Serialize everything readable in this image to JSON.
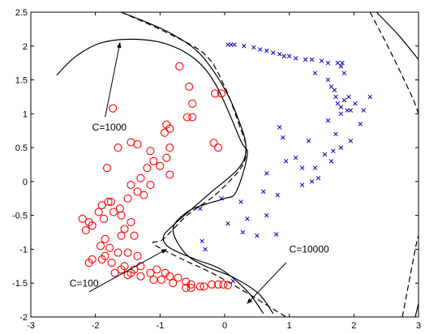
{
  "chart_data": {
    "type": "scatter",
    "title": "",
    "xlabel": "",
    "ylabel": "",
    "xlim": [
      -3,
      3
    ],
    "ylim": [
      -2,
      2.5
    ],
    "xticks": [
      "-3",
      "-2",
      "-1",
      "0",
      "1",
      "2",
      "3"
    ],
    "yticks": [
      "-2",
      "-1.5",
      "-1",
      "-0.5",
      "0",
      "0.5",
      "1",
      "1.5",
      "2",
      "2.5"
    ],
    "grid": false,
    "legend": "none",
    "colors": {
      "circles": "#ff0000",
      "crosses": "#0000cc",
      "boundary": "#000000"
    },
    "series": [
      {
        "marker": "circle",
        "color": "#ff0000",
        "points": [
          [
            -0.7,
            1.7
          ],
          [
            -0.55,
            1.4
          ],
          [
            -0.5,
            1.15
          ],
          [
            -1.73,
            1.08
          ],
          [
            -0.9,
            0.84
          ],
          [
            -0.85,
            0.78
          ],
          [
            -0.93,
            0.72
          ],
          [
            -0.58,
            0.95
          ],
          [
            -0.5,
            0.95
          ],
          [
            -0.15,
            1.3
          ],
          [
            -0.05,
            1.3
          ],
          [
            -1.45,
            0.58
          ],
          [
            -1.35,
            0.55
          ],
          [
            -1.65,
            0.5
          ],
          [
            -1.15,
            0.45
          ],
          [
            -0.85,
            0.5
          ],
          [
            -0.17,
            0.57
          ],
          [
            -0.1,
            0.5
          ],
          [
            -1.1,
            0.3
          ],
          [
            -1.2,
            0.2
          ],
          [
            -1.0,
            0.23
          ],
          [
            -0.9,
            0.35
          ],
          [
            -0.85,
            0.1
          ],
          [
            -1.82,
            0.2
          ],
          [
            -1.3,
            0.05
          ],
          [
            -1.15,
            -0.05
          ],
          [
            -1.45,
            -0.05
          ],
          [
            -1.35,
            -0.15
          ],
          [
            -1.25,
            -0.2
          ],
          [
            -1.5,
            -0.25
          ],
          [
            -1.8,
            -0.3
          ],
          [
            -1.62,
            -0.4
          ],
          [
            -1.6,
            -0.5
          ],
          [
            -1.72,
            -0.45
          ],
          [
            -1.76,
            -0.3
          ],
          [
            -1.9,
            -0.35
          ],
          [
            -1.95,
            -0.45
          ],
          [
            -1.87,
            -0.55
          ],
          [
            -2.2,
            -0.55
          ],
          [
            -2.1,
            -0.6
          ],
          [
            -2.05,
            -0.65
          ],
          [
            -2.15,
            -0.72
          ],
          [
            -1.55,
            -0.7
          ],
          [
            -1.45,
            -0.6
          ],
          [
            -1.4,
            -0.8
          ],
          [
            -1.6,
            -0.8
          ],
          [
            -1.85,
            -0.85
          ],
          [
            -1.92,
            -0.95
          ],
          [
            -1.78,
            -0.98
          ],
          [
            -1.85,
            -1.1
          ],
          [
            -1.65,
            -1.05
          ],
          [
            -1.5,
            -1.05
          ],
          [
            -1.35,
            -1.1
          ],
          [
            -1.9,
            -1.15
          ],
          [
            -2.05,
            -1.15
          ],
          [
            -2.1,
            -1.2
          ],
          [
            -1.75,
            -1.2
          ],
          [
            -1.55,
            -1.25
          ],
          [
            -1.45,
            -1.35
          ],
          [
            -1.4,
            -1.3
          ],
          [
            -1.3,
            -1.25
          ],
          [
            -1.6,
            -1.3
          ],
          [
            -1.7,
            -1.35
          ],
          [
            -1.5,
            -1.38
          ],
          [
            -1.3,
            -1.4
          ],
          [
            -1.15,
            -1.35
          ],
          [
            -1.05,
            -1.3
          ],
          [
            -0.92,
            -1.35
          ],
          [
            -0.85,
            -1.4
          ],
          [
            -1.1,
            -1.45
          ],
          [
            -0.98,
            -1.45
          ],
          [
            -0.8,
            -1.5
          ],
          [
            -0.72,
            -1.42
          ],
          [
            -0.6,
            -1.48
          ],
          [
            -0.52,
            -1.52
          ],
          [
            -0.38,
            -1.55
          ],
          [
            -0.32,
            -1.55
          ],
          [
            -0.2,
            -1.52
          ],
          [
            -0.1,
            -1.52
          ],
          [
            -0.02,
            -1.52
          ],
          [
            0.05,
            -1.53
          ],
          [
            -0.6,
            -1.57
          ],
          [
            -0.52,
            -1.57
          ]
        ]
      },
      {
        "marker": "cross",
        "color": "#0000cc",
        "points": [
          [
            0.05,
            2.02
          ],
          [
            0.1,
            2.02
          ],
          [
            0.15,
            2.02
          ],
          [
            0.3,
            2.0
          ],
          [
            0.45,
            1.98
          ],
          [
            0.55,
            1.95
          ],
          [
            0.65,
            1.93
          ],
          [
            0.75,
            1.9
          ],
          [
            0.85,
            1.88
          ],
          [
            0.92,
            1.85
          ],
          [
            1.0,
            1.85
          ],
          [
            1.1,
            1.82
          ],
          [
            1.25,
            1.8
          ],
          [
            1.35,
            1.8
          ],
          [
            1.5,
            1.78
          ],
          [
            1.6,
            1.75
          ],
          [
            1.75,
            1.75
          ],
          [
            1.82,
            1.75
          ],
          [
            1.8,
            1.7
          ],
          [
            1.85,
            1.6
          ],
          [
            1.4,
            1.6
          ],
          [
            1.6,
            1.5
          ],
          [
            1.65,
            1.4
          ],
          [
            1.7,
            1.35
          ],
          [
            1.72,
            1.25
          ],
          [
            1.75,
            1.15
          ],
          [
            1.8,
            1.1
          ],
          [
            1.85,
            1.2
          ],
          [
            1.92,
            1.25
          ],
          [
            1.9,
            1.05
          ],
          [
            1.8,
            1.0
          ],
          [
            1.95,
            1.05
          ],
          [
            2.02,
            1.15
          ],
          [
            2.25,
            1.25
          ],
          [
            2.15,
            1.05
          ],
          [
            2.1,
            0.85
          ],
          [
            1.6,
            0.9
          ],
          [
            0.85,
            0.8
          ],
          [
            1.72,
            0.7
          ],
          [
            0.9,
            0.65
          ],
          [
            1.3,
            0.6
          ],
          [
            1.95,
            0.6
          ],
          [
            1.8,
            0.5
          ],
          [
            1.68,
            0.45
          ],
          [
            1.55,
            0.4
          ],
          [
            1.1,
            0.35
          ],
          [
            1.65,
            0.3
          ],
          [
            0.95,
            0.3
          ],
          [
            1.2,
            0.2
          ],
          [
            1.4,
            0.2
          ],
          [
            0.65,
            0.12
          ],
          [
            1.45,
            0.05
          ],
          [
            1.35,
            0.0
          ],
          [
            1.2,
            -0.05
          ],
          [
            0.6,
            -0.15
          ],
          [
            0.82,
            -0.2
          ],
          [
            -0.05,
            -0.25
          ],
          [
            0.25,
            -0.3
          ],
          [
            -0.38,
            -0.4
          ],
          [
            0.65,
            -0.5
          ],
          [
            0.35,
            -0.55
          ],
          [
            0.05,
            -0.62
          ],
          [
            0.28,
            -0.75
          ],
          [
            0.5,
            -0.8
          ],
          [
            0.8,
            -0.78
          ],
          [
            -0.35,
            -0.88
          ],
          [
            -0.3,
            -1.0
          ],
          [
            0.13,
            -1.47
          ]
        ]
      }
    ],
    "boundaries": [
      {
        "style": "solid",
        "points": [
          [
            -2.6,
            1.57
          ],
          [
            -2.3,
            1.85
          ],
          [
            -1.9,
            2.05
          ],
          [
            -1.4,
            2.1
          ],
          [
            -0.9,
            2.03
          ],
          [
            -0.45,
            1.8
          ],
          [
            -0.12,
            1.4
          ],
          [
            0.25,
            0.6
          ],
          [
            0.35,
            0.4
          ],
          [
            0.18,
            -0.15
          ],
          [
            0.0,
            -0.25
          ],
          [
            -0.28,
            -0.33
          ],
          [
            -0.58,
            -0.45
          ],
          [
            -0.8,
            -0.7
          ],
          [
            -0.62,
            -1.05
          ],
          [
            -0.3,
            -1.25
          ],
          [
            0.1,
            -1.4
          ],
          [
            0.52,
            -1.65
          ],
          [
            0.75,
            -1.95
          ]
        ]
      },
      {
        "style": "solid",
        "points": [
          [
            -1.6,
            2.5
          ],
          [
            -0.9,
            2.22
          ],
          [
            -0.4,
            1.9
          ],
          [
            -0.02,
            1.4
          ],
          [
            0.22,
            0.9
          ],
          [
            0.33,
            0.5
          ],
          [
            0.22,
            0.2
          ],
          [
            -0.2,
            -0.15
          ],
          [
            -0.5,
            -0.4
          ],
          [
            -0.8,
            -0.65
          ],
          [
            -0.95,
            -0.82
          ],
          [
            -0.85,
            -0.98
          ],
          [
            -0.45,
            -1.15
          ],
          [
            -0.05,
            -1.3
          ],
          [
            0.35,
            -1.62
          ],
          [
            0.6,
            -1.95
          ]
        ]
      },
      {
        "style": "dashed",
        "points": [
          [
            -1.6,
            2.5
          ],
          [
            -0.9,
            2.2
          ],
          [
            -0.3,
            1.87
          ],
          [
            0.0,
            1.4
          ],
          [
            0.22,
            0.85
          ],
          [
            0.33,
            0.5
          ],
          [
            0.25,
            0.2
          ],
          [
            -0.15,
            -0.2
          ],
          [
            -0.58,
            -0.5
          ],
          [
            -0.95,
            -0.85
          ],
          [
            -1.1,
            -0.92
          ],
          [
            -0.65,
            -1.15
          ],
          [
            -0.2,
            -1.35
          ],
          [
            0.3,
            -1.62
          ],
          [
            0.95,
            -2.0
          ]
        ]
      },
      {
        "style": "solid",
        "points": [
          [
            2.35,
            2.5
          ],
          [
            2.7,
            2.15
          ],
          [
            3.0,
            1.8
          ]
        ]
      },
      {
        "style": "dashed",
        "points": [
          [
            2.25,
            2.5
          ],
          [
            2.55,
            1.95
          ],
          [
            2.9,
            1.25
          ],
          [
            3.0,
            1.0
          ]
        ]
      },
      {
        "style": "dashed",
        "points": [
          [
            2.75,
            -2.0
          ],
          [
            2.95,
            -1.0
          ],
          [
            3.0,
            -0.8
          ]
        ]
      },
      {
        "style": "solid",
        "points": [
          [
            2.95,
            -2.0
          ],
          [
            3.0,
            -1.8
          ]
        ]
      }
    ],
    "annotations": [
      {
        "text": "C=1000",
        "label_at": [
          -2.05,
          0.75
        ],
        "arrow_from": [
          -1.85,
          0.95
        ],
        "arrow_to": [
          -1.62,
          2.05
        ]
      },
      {
        "text": "C=100",
        "label_at": [
          -2.4,
          -1.55
        ],
        "arrow_from": [
          -2.1,
          -1.63
        ],
        "arrow_to": [
          -0.9,
          -1.0
        ]
      },
      {
        "text": "C=10000",
        "label_at": [
          1.0,
          -1.05
        ],
        "arrow_from": [
          0.95,
          -1.2
        ],
        "arrow_to": [
          0.35,
          -1.8
        ]
      }
    ]
  }
}
